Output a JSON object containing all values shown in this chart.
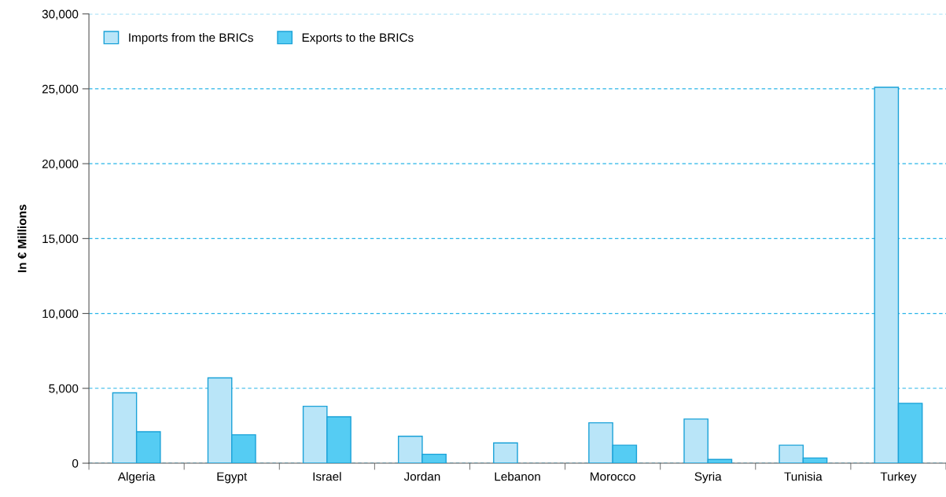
{
  "chart_data": {
    "type": "bar",
    "ylabel": "In € Millions",
    "categories": [
      "Algeria",
      "Egypt",
      "Israel",
      "Jordan",
      "Lebanon",
      "Morocco",
      "Syria",
      "Tunisia",
      "Turkey"
    ],
    "series": [
      {
        "name": "Imports from the BRICs",
        "color": "#b9e5f8",
        "values": [
          4700,
          5700,
          3800,
          1800,
          1350,
          2700,
          2950,
          1200,
          25100
        ]
      },
      {
        "name": "Exports to the BRICs",
        "color": "#55ccf3",
        "values": [
          2100,
          1900,
          3100,
          600,
          null,
          1200,
          250,
          350,
          4000
        ]
      }
    ],
    "ylim": [
      0,
      30000
    ],
    "yticks": [
      {
        "value": 0,
        "label": "0"
      },
      {
        "value": 5000,
        "label": "5,000"
      },
      {
        "value": 10000,
        "label": "10,000"
      },
      {
        "value": 15000,
        "label": "15,000"
      },
      {
        "value": 20000,
        "label": "20,000"
      },
      {
        "value": 25000,
        "label": "25,000"
      },
      {
        "value": 30000,
        "label": "30,000"
      }
    ],
    "grid": "y",
    "legend": "top left"
  }
}
